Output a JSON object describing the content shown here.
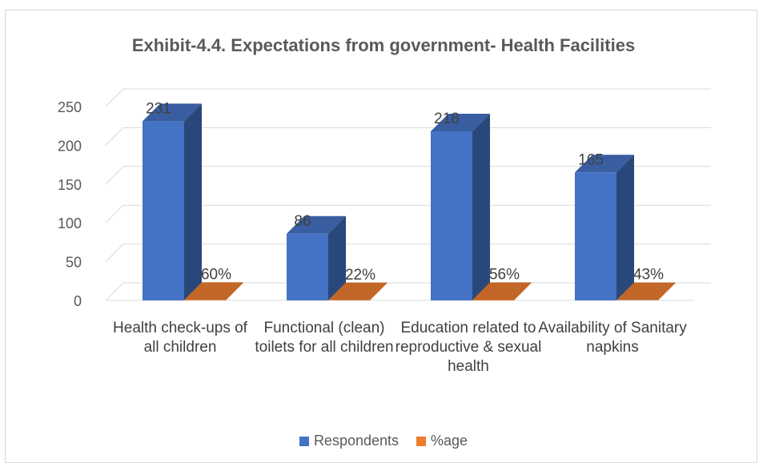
{
  "chart_data": {
    "type": "bar",
    "title": "Exhibit-4.4. Expectations from government- Health Facilities",
    "xlabel": "",
    "ylabel": "",
    "ylim": [
      0,
      250
    ],
    "yticks": [
      "0",
      "50",
      "100",
      "150",
      "200",
      "250"
    ],
    "categories": [
      "Health check-ups of all children",
      "Functional (clean) toilets for all children",
      "Education related to reproductive & sexual health",
      "Availability of Sanitary napkins"
    ],
    "series": [
      {
        "name": "Respondents",
        "color": "#4472c4",
        "values": [
          231,
          86,
          218,
          165
        ],
        "labels": [
          "231",
          "86",
          "218",
          "165"
        ]
      },
      {
        "name": "%age",
        "color": "#ed7d31",
        "values": [
          0.6,
          0.22,
          0.56,
          0.43
        ],
        "labels": [
          "60%",
          "22%",
          "56%",
          "43%"
        ]
      }
    ],
    "grid": true,
    "legend": "bottom"
  }
}
